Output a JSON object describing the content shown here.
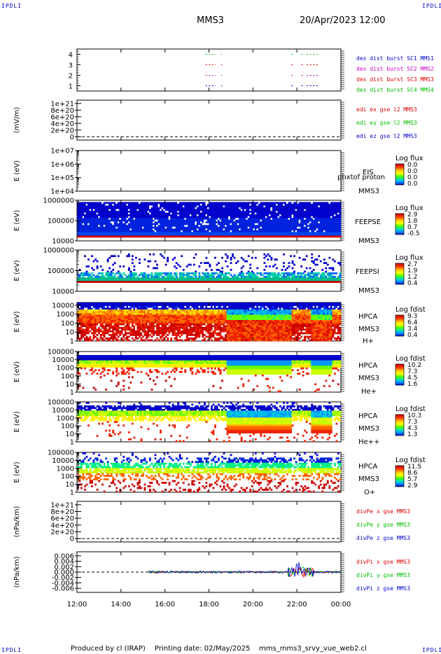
{
  "corners": {
    "tl": "IPDLI",
    "tr": "IPDLI",
    "bl": "IPDLI",
    "br": "IPDLI"
  },
  "header": {
    "spacecraft": "MMS3",
    "datetime": "20/Apr/2023 12:00"
  },
  "footer": {
    "producer": "Produced by cl (IRAP)",
    "printing": "Printing date: 02/May/2025",
    "script": "mms_mms3_srvy_vue_web2.cl"
  },
  "colors": {
    "blue": "#0000cc",
    "magenta": "#cc00cc",
    "red": "#dd0000",
    "green": "#00bb00",
    "black": "#000000"
  },
  "chart_data": [
    {
      "type": "line",
      "name": "burst-intervals",
      "ylim": [
        0.5,
        4.5
      ],
      "yticks": [
        1,
        2,
        3,
        4
      ],
      "legend": [
        {
          "text": "des dist burst SC1 MMS1",
          "color": "blue"
        },
        {
          "text": "des dist burst SC2 MMS2",
          "color": "magenta"
        },
        {
          "text": "des dist burst SC3 MMS3",
          "color": "red"
        },
        {
          "text": "des dist burst SC4 MMS4",
          "color": "green"
        }
      ],
      "series": [
        {
          "y": 1,
          "color": "blue",
          "segments": [
            [
              17.85,
              18.3
            ],
            [
              18.55,
              18.6
            ],
            [
              21.75,
              21.85
            ],
            [
              22.2,
              22.3
            ],
            [
              22.45,
              22.95
            ]
          ]
        },
        {
          "y": 2,
          "color": "magenta",
          "segments": [
            [
              17.85,
              18.3
            ],
            [
              18.55,
              18.6
            ],
            [
              21.75,
              21.85
            ],
            [
              22.2,
              22.3
            ],
            [
              22.45,
              22.95
            ]
          ]
        },
        {
          "y": 3,
          "color": "red",
          "segments": [
            [
              17.85,
              18.3
            ],
            [
              18.55,
              18.6
            ],
            [
              21.75,
              21.85
            ],
            [
              22.2,
              22.3
            ],
            [
              22.45,
              22.95
            ]
          ]
        },
        {
          "y": 4,
          "color": "green",
          "segments": [
            [
              17.85,
              18.3
            ],
            [
              18.55,
              18.6
            ],
            [
              21.75,
              21.85
            ],
            [
              22.2,
              22.3
            ],
            [
              22.45,
              22.95
            ]
          ]
        }
      ]
    },
    {
      "type": "line",
      "name": "edi-efield",
      "ylabel": "(mV/m)",
      "ylim": [
        -1e+20,
        1.1e+21
      ],
      "yticks": [
        0,
        2e+20,
        4e+20,
        6e+20,
        8e+20,
        1e+21
      ],
      "yticklabels": [
        "0",
        "2e+20",
        "4e+20",
        "6e+20",
        "8e+20",
        "1e+21"
      ],
      "zero_line": true,
      "legend": [
        {
          "text": "edi ex gse l2 MMS3",
          "color": "red"
        },
        {
          "text": "edi ey gse l2 MMS3",
          "color": "green"
        },
        {
          "text": "edi ez gse l2 MMS3",
          "color": "blue"
        }
      ]
    },
    {
      "type": "heatmap",
      "name": "eis",
      "ylabel": "E (eV)",
      "scale": "log",
      "ylim": [
        10000.0,
        10000000.0
      ],
      "yticklabels": [
        "1e+04",
        "1e+05",
        "1e+06",
        "1e+07"
      ],
      "labels": [
        "EIS",
        "MMS3"
      ],
      "overlay": "phxtof proton",
      "cb_title": "Log flux",
      "cb_ticks": [
        "0.0",
        "0.0",
        "0.0",
        "0.0"
      ],
      "empty": true
    },
    {
      "type": "heatmap",
      "name": "feeps-e",
      "ylabel": "E (eV)",
      "scale": "log",
      "ylim": [
        10000.0,
        1000000.0
      ],
      "yticklabels": [
        "10000",
        "100000",
        "1000000"
      ],
      "labels": [
        "FEEPSE",
        "MMS3"
      ],
      "cb_title": "Log flux",
      "cb_ticks": [
        "2.9",
        "1.8",
        "0.7",
        "-0.5"
      ],
      "band_low": [
        30000,
        40000
      ],
      "band_mid": [
        40000,
        80000
      ],
      "band_top": [
        80000,
        1000000
      ]
    },
    {
      "type": "heatmap",
      "name": "feeps-i",
      "ylabel": "E (eV)",
      "scale": "log",
      "ylim": [
        10000.0,
        1000000.0
      ],
      "yticklabels": [
        "10000",
        "100000",
        "1000000"
      ],
      "labels": [
        "FEEPSI",
        "MMS3"
      ],
      "cb_title": "Log flux",
      "cb_ticks": [
        "2.7",
        "1.9",
        "1.2",
        "0.4"
      ],
      "band_low": [
        55000,
        65000
      ],
      "band_mid": [
        65000,
        110000
      ],
      "band_top": [
        110000,
        900000
      ]
    },
    {
      "type": "heatmap",
      "name": "hpca-h",
      "ylabel": "E (eV)",
      "scale": "log",
      "ylim": [
        1,
        20000
      ],
      "yticklabels": [
        "1",
        "10",
        "100",
        "1000",
        "10000"
      ],
      "labels": [
        "HPCA",
        "MMS3",
        "H+"
      ],
      "cb_title": "Log fdist",
      "cb_ticks": [
        "9.3",
        "6.4",
        "3.4",
        "0.4"
      ],
      "intervals": [
        [
          12,
          15.2
        ],
        [
          15.2,
          17.4
        ],
        [
          17.4,
          18.8
        ],
        [
          18.8,
          21.8
        ],
        [
          21.8,
          22.6
        ],
        [
          22.6,
          24
        ]
      ]
    },
    {
      "type": "heatmap",
      "name": "hpca-he",
      "ylabel": "E (eV)",
      "scale": "log",
      "ylim": [
        1,
        100000
      ],
      "yticklabels": [
        "1",
        "10",
        "100",
        "1000",
        "10000",
        "100000"
      ],
      "labels": [
        "HPCA",
        "MMS3",
        "He+"
      ],
      "cb_title": "Log fdist",
      "cb_ticks": [
        "10.2",
        "7.3",
        "4.5",
        "1.6"
      ]
    },
    {
      "type": "heatmap",
      "name": "hpca-he2",
      "ylabel": "E (eV)",
      "scale": "log",
      "ylim": [
        1,
        100000
      ],
      "yticklabels": [
        "1",
        "10",
        "100",
        "1000",
        "10000",
        "100000"
      ],
      "labels": [
        "HPCA",
        "MMS3",
        "He++"
      ],
      "cb_title": "Log fdist",
      "cb_ticks": [
        "10.3",
        "7.3",
        "4.3",
        "1.3"
      ]
    },
    {
      "type": "heatmap",
      "name": "hpca-o",
      "ylabel": "E (eV)",
      "scale": "log",
      "ylim": [
        1,
        100000
      ],
      "yticklabels": [
        "1",
        "10",
        "100",
        "1000",
        "10000",
        "100000"
      ],
      "labels": [
        "HPCA",
        "MMS3",
        "O+"
      ],
      "cb_title": "Log fdist",
      "cb_ticks": [
        "11.5",
        "8.6",
        "5.7",
        "2.9"
      ]
    },
    {
      "type": "line",
      "name": "divpe",
      "ylabel": "(nPa/km)",
      "ylim": [
        -1e+20,
        1.1e+21
      ],
      "yticks": [
        0,
        2e+20,
        4e+20,
        6e+20,
        8e+20,
        1e+21
      ],
      "yticklabels": [
        "0",
        "2e+20",
        "4e+20",
        "6e+20",
        "8e+20",
        "1e+21"
      ],
      "zero_line": true,
      "legend": [
        {
          "text": "divPe x gse MMS3",
          "color": "red"
        },
        {
          "text": "divPe y gse MMS3",
          "color": "green"
        },
        {
          "text": "divPe z gse MMS3",
          "color": "blue"
        }
      ]
    },
    {
      "type": "line",
      "name": "divpi",
      "ylabel": "(nPa/km)",
      "ylim": [
        -0.0075,
        0.0075
      ],
      "yticks": [
        -0.006,
        -0.004,
        -0.002,
        0,
        0.002,
        0.004,
        0.006
      ],
      "yticklabels": [
        "-0.006",
        "-0.004",
        "-0.002",
        "0.000",
        "0.002",
        "0.004",
        "0.006"
      ],
      "zero_line": true,
      "data_start": 15.25,
      "legend": [
        {
          "text": "divPi x gse MMS3",
          "color": "red"
        },
        {
          "text": "divPi y gse MMS3",
          "color": "green"
        },
        {
          "text": "divPi z gse MMS3",
          "color": "blue"
        }
      ]
    }
  ],
  "xaxis": {
    "xlim": [
      12,
      24
    ],
    "ticks": [
      12,
      14,
      16,
      18,
      20,
      22,
      24
    ],
    "ticklabels": [
      "12:00",
      "14:00",
      "16:00",
      "18:00",
      "20:00",
      "22:00",
      "00:00"
    ]
  }
}
